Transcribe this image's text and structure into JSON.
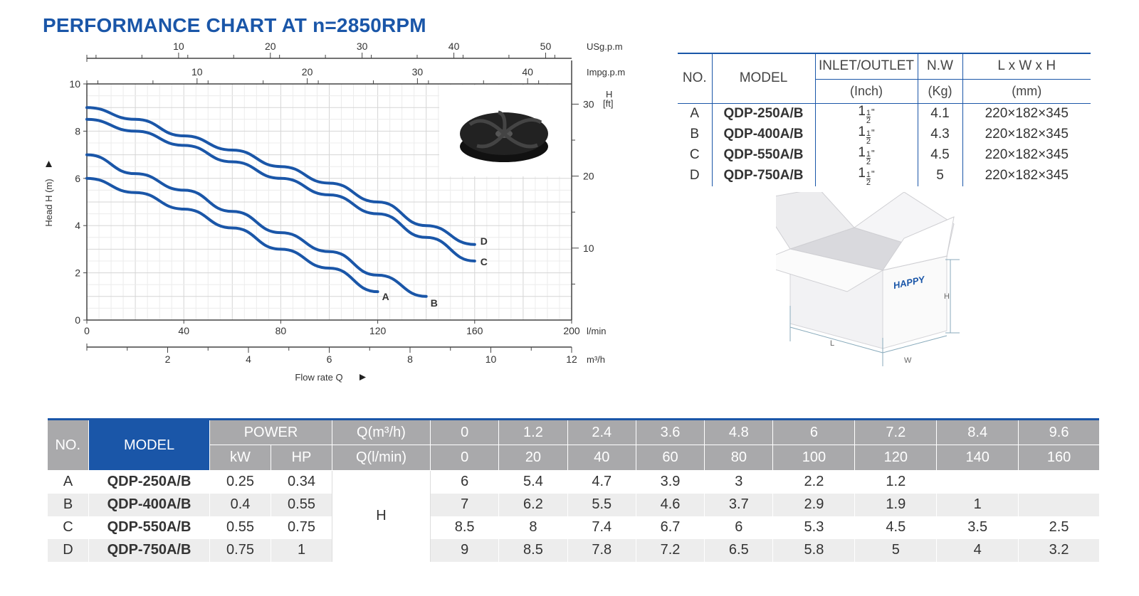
{
  "title": "PERFORMANCE CHART AT n=2850RPM",
  "colors": {
    "accent": "#1a56a8",
    "curve": "#1a56a8",
    "header_gray": "#a9a9ab"
  },
  "chart_data": {
    "type": "line",
    "x": [
      0,
      20,
      40,
      60,
      80,
      100,
      120,
      140,
      160
    ],
    "xlabel": "Flow rate Q",
    "x_unit": "l/min",
    "xlim": [
      0,
      200
    ],
    "x_ticks": [
      0,
      40,
      80,
      120,
      160,
      200
    ],
    "ylabel": "Head H (m)",
    "ylim": [
      0,
      10
    ],
    "y_ticks": [
      0,
      2,
      4,
      6,
      8,
      10
    ],
    "y2_label": "H",
    "y2_unit": "[ft]",
    "y2_ticks": [
      10,
      20,
      30
    ],
    "x_secondary": [
      {
        "unit": "m³/h",
        "ticks": [
          2,
          4,
          6,
          8,
          10,
          12
        ]
      },
      {
        "unit": "Impg.p.m",
        "ticks": [
          10,
          20,
          30,
          40
        ]
      },
      {
        "unit": "USg.p.m",
        "ticks": [
          10,
          20,
          30,
          40,
          50
        ]
      }
    ],
    "grid": true,
    "series": [
      {
        "name": "A",
        "values": [
          6,
          5.4,
          4.7,
          3.9,
          3,
          2.2,
          1.2,
          null,
          null
        ]
      },
      {
        "name": "B",
        "values": [
          7,
          6.2,
          5.5,
          4.6,
          3.7,
          2.9,
          1.9,
          1,
          null
        ]
      },
      {
        "name": "C",
        "values": [
          8.5,
          8,
          7.4,
          6.7,
          6,
          5.3,
          4.5,
          3.5,
          2.5
        ]
      },
      {
        "name": "D",
        "values": [
          9,
          8.5,
          7.8,
          7.2,
          6.5,
          5.8,
          5,
          4,
          3.2
        ]
      }
    ]
  },
  "spec_table": {
    "headers": {
      "no": "NO.",
      "model": "MODEL",
      "inlet": "INLET/OUTLET",
      "inlet_unit": "(Inch)",
      "nw": "N.W",
      "nw_unit": "(Kg)",
      "dims": "L x W x H",
      "dims_unit": "(mm)"
    },
    "rows": [
      {
        "no": "A",
        "model": "QDP-250A/B",
        "inlet_whole": "1",
        "inlet_num": "1",
        "inlet_den": "2",
        "inlet_mark": "\"",
        "nw": "4.1",
        "dims": "220×182×345"
      },
      {
        "no": "B",
        "model": "QDP-400A/B",
        "inlet_whole": "1",
        "inlet_num": "1",
        "inlet_den": "2",
        "inlet_mark": "\"",
        "nw": "4.3",
        "dims": "220×182×345"
      },
      {
        "no": "C",
        "model": "QDP-550A/B",
        "inlet_whole": "1",
        "inlet_num": "1",
        "inlet_den": "2",
        "inlet_mark": "\"",
        "nw": "4.5",
        "dims": "220×182×345"
      },
      {
        "no": "D",
        "model": "QDP-750A/B",
        "inlet_whole": "1",
        "inlet_num": "1",
        "inlet_den": "2",
        "inlet_mark": "\"",
        "nw": "5",
        "dims": "220×182×345"
      }
    ]
  },
  "box": {
    "brand": "HAPPY",
    "label_l": "L",
    "label_w": "W",
    "label_h": "H"
  },
  "perf_table": {
    "headers": {
      "no": "NO.",
      "model": "MODEL",
      "power": "POWER",
      "kw": "kW",
      "hp": "HP",
      "q_m3h": "Q(m³/h)",
      "q_lmin": "Q(l/min)",
      "h": "H"
    },
    "q_m3h": [
      "0",
      "1.2",
      "2.4",
      "3.6",
      "4.8",
      "6",
      "7.2",
      "8.4",
      "9.6"
    ],
    "q_lmin": [
      "0",
      "20",
      "40",
      "60",
      "80",
      "100",
      "120",
      "140",
      "160"
    ],
    "rows": [
      {
        "no": "A",
        "model": "QDP-250A/B",
        "kw": "0.25",
        "hp": "0.34",
        "h": [
          "6",
          "5.4",
          "4.7",
          "3.9",
          "3",
          "2.2",
          "1.2",
          "",
          ""
        ]
      },
      {
        "no": "B",
        "model": "QDP-400A/B",
        "kw": "0.4",
        "hp": "0.55",
        "h": [
          "7",
          "6.2",
          "5.5",
          "4.6",
          "3.7",
          "2.9",
          "1.9",
          "1",
          ""
        ]
      },
      {
        "no": "C",
        "model": "QDP-550A/B",
        "kw": "0.55",
        "hp": "0.75",
        "h": [
          "8.5",
          "8",
          "7.4",
          "6.7",
          "6",
          "5.3",
          "4.5",
          "3.5",
          "2.5"
        ]
      },
      {
        "no": "D",
        "model": "QDP-750A/B",
        "kw": "0.75",
        "hp": "1",
        "h": [
          "9",
          "8.5",
          "7.8",
          "7.2",
          "6.5",
          "5.8",
          "5",
          "4",
          "3.2"
        ]
      }
    ]
  }
}
